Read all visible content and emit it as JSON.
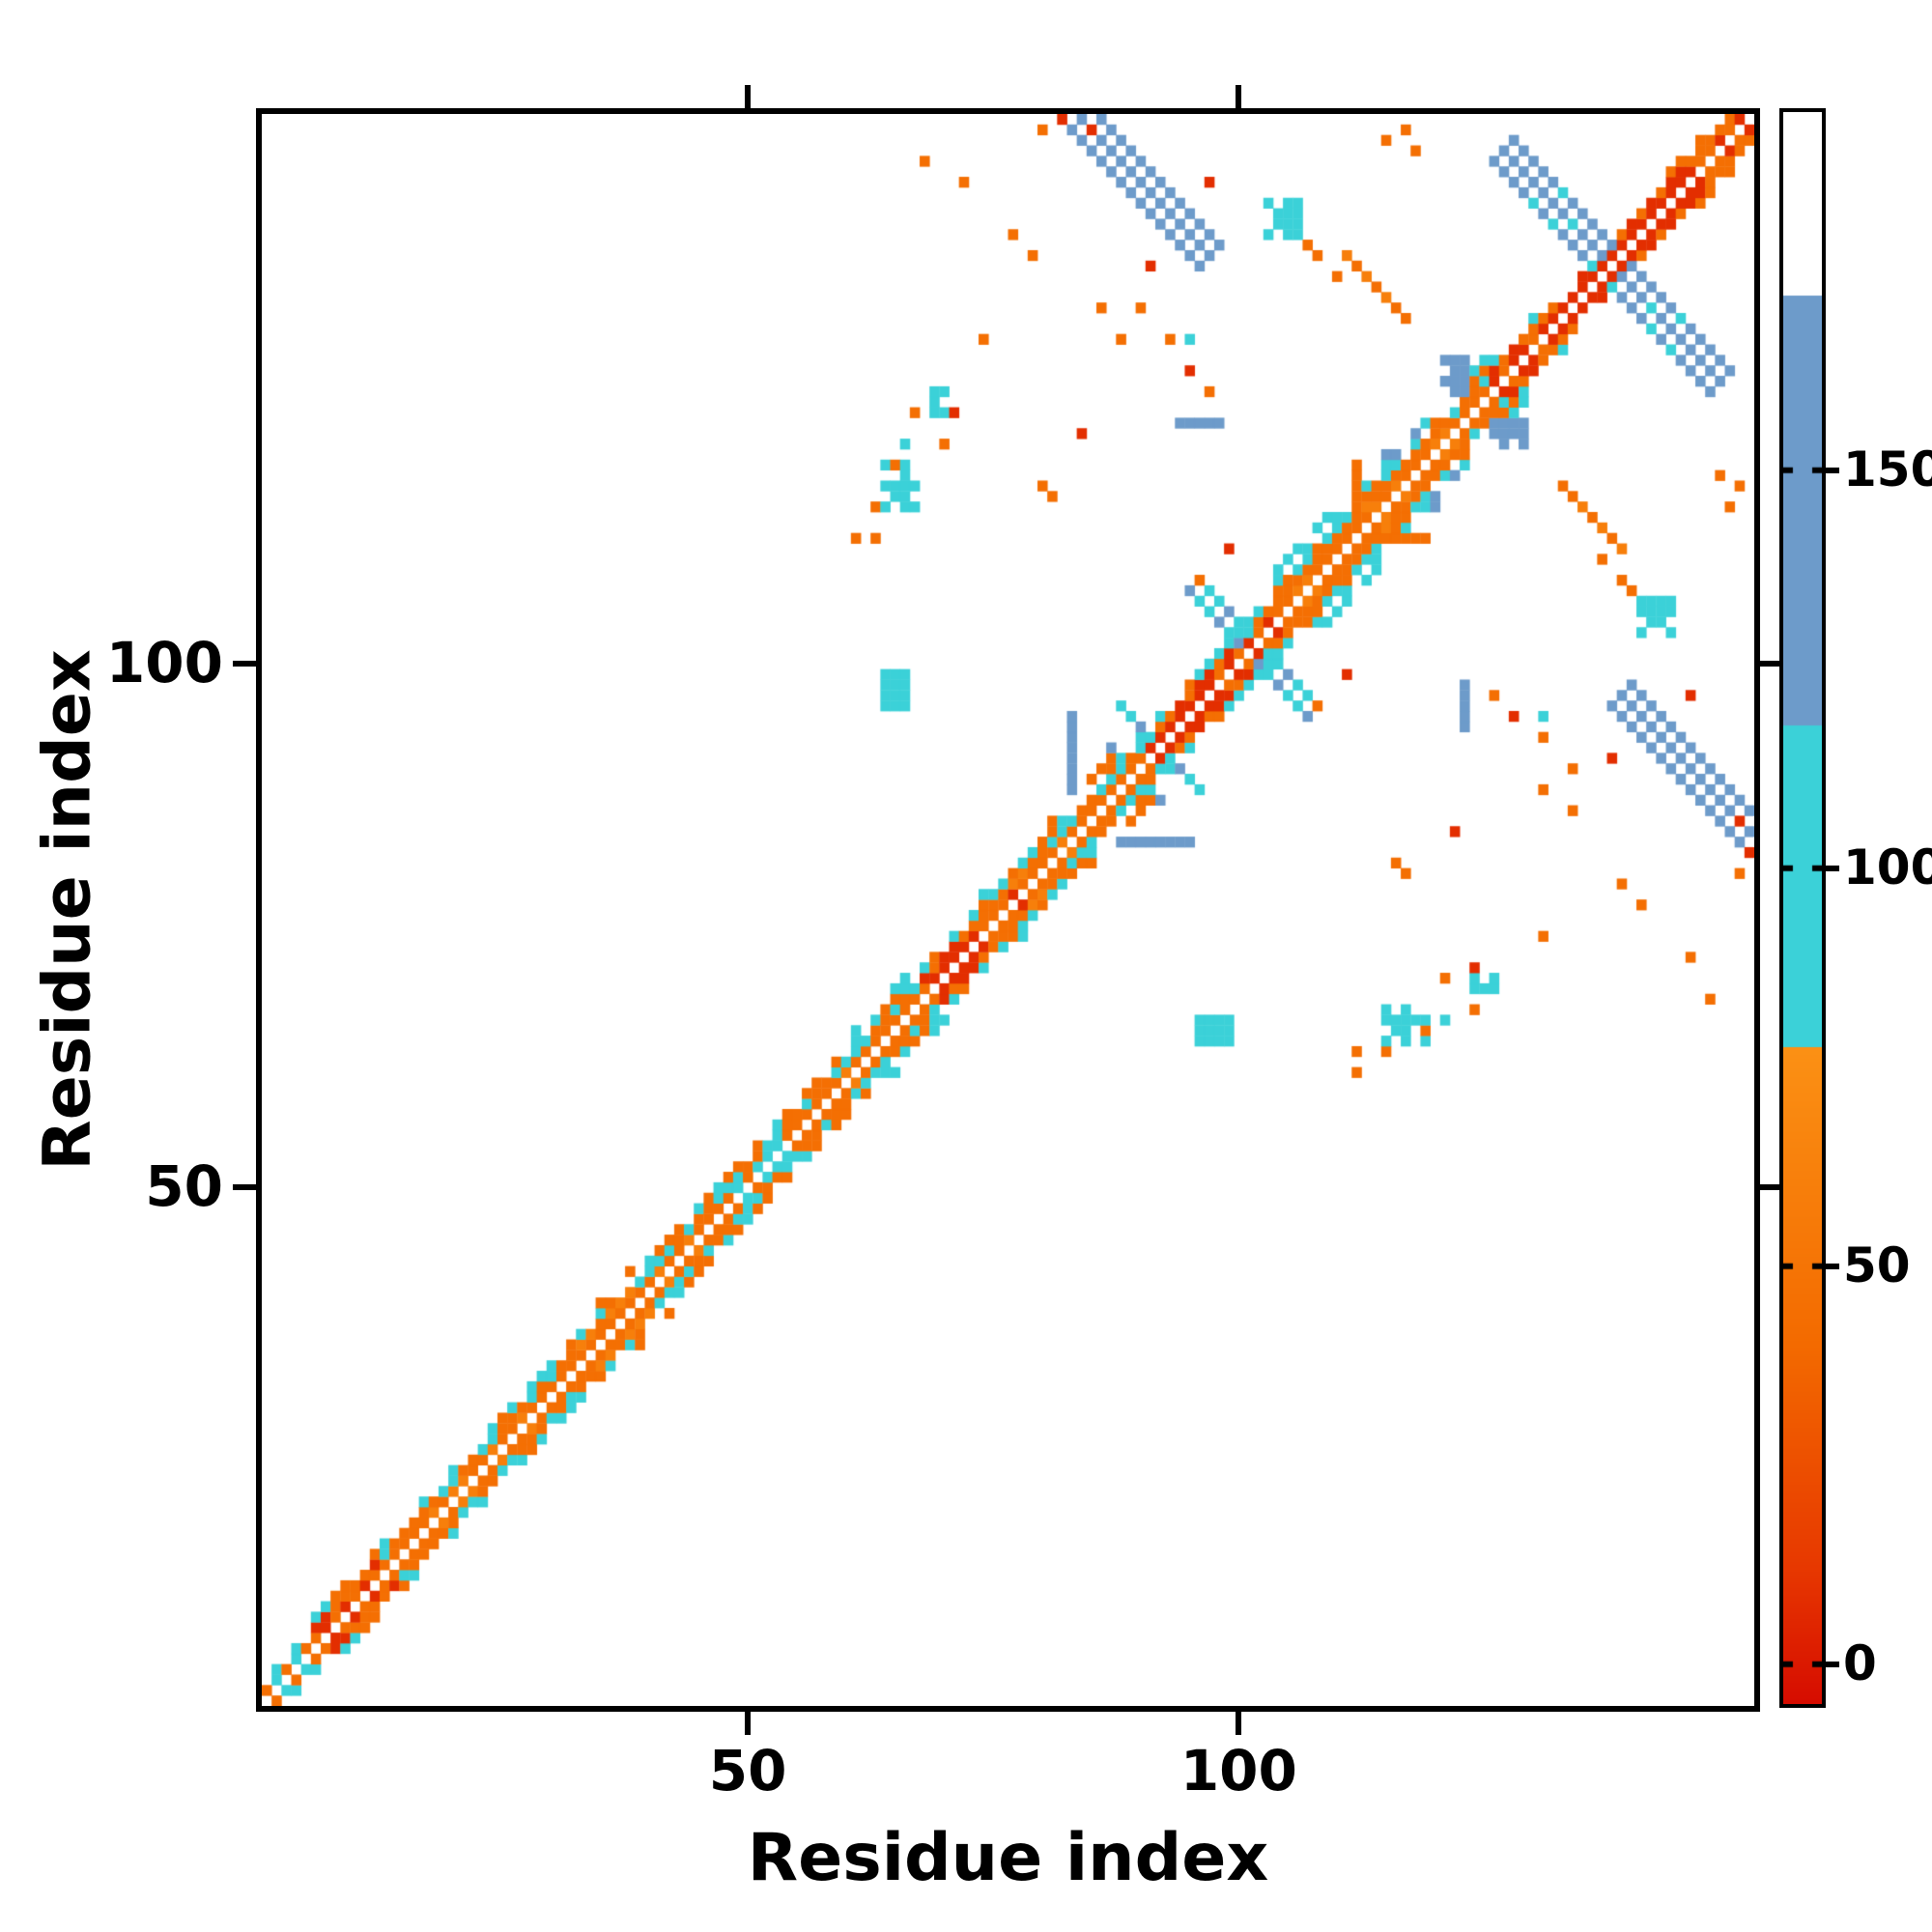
{
  "figure": {
    "background": "#ffffff"
  },
  "chart_data": {
    "type": "heatmap",
    "title": "",
    "xlabel": "Residue index",
    "ylabel": "Residue index",
    "n_residues": 152,
    "axis_range": [
      1,
      152
    ],
    "x_ticks": [
      50,
      100
    ],
    "y_ticks": [
      50,
      100
    ],
    "grid": false,
    "colorbar": {
      "ticks": [
        0,
        50,
        100,
        150
      ],
      "range": [
        -5,
        195
      ],
      "position": "right"
    },
    "colormap": {
      "anchors": [
        [
          -5,
          "#d60c00"
        ],
        [
          12,
          "#e73800"
        ],
        [
          40,
          "#f36a00"
        ],
        [
          77,
          "#fb9014"
        ]
      ],
      "flat_bands": [
        {
          "from": 77.5,
          "to": 118,
          "color": "#3bd1d8"
        },
        {
          "from": 118,
          "to": 172,
          "color": "#6d9bca"
        },
        {
          "from": 172,
          "to": 200,
          "color": "#ffffff"
        }
      ]
    },
    "value_levels": {
      "red": 8,
      "orange": 45,
      "orange_light": 60,
      "cyan": 95,
      "blue": 140
    },
    "texture_seed": 20240613,
    "features": {
      "diagonal_segments": [
        {
          "from": 1,
          "to": 5,
          "palettes": [
            [
              95,
              45,
              45
            ],
            [
              45,
              null,
              95
            ]
          ]
        },
        {
          "from": 6,
          "to": 12,
          "palettes": [
            [
              8,
              45,
              8
            ],
            [
              45,
              45,
              8
            ],
            [
              null,
              45,
              95
            ]
          ]
        },
        {
          "from": 13,
          "to": 22,
          "palettes": [
            [
              45,
              45,
              60
            ],
            [
              45,
              95,
              45
            ],
            [
              95,
              null,
              null
            ]
          ]
        },
        {
          "from": 23,
          "to": 30,
          "palettes": [
            [
              45,
              60,
              45
            ],
            [
              45,
              45,
              95
            ],
            [
              null,
              95,
              45,
              null
            ]
          ]
        },
        {
          "from": 31,
          "to": 38,
          "palettes": [
            [
              45,
              45,
              45
            ],
            [
              60,
              45,
              45
            ],
            [
              45,
              95,
              null
            ],
            [
              null,
              null,
              45
            ]
          ]
        },
        {
          "from": 39,
          "to": 46,
          "palettes": [
            [
              45,
              60,
              45
            ],
            [
              95,
              45,
              95
            ],
            [
              95,
              45,
              null
            ]
          ]
        },
        {
          "from": 47,
          "to": 53,
          "palettes": [
            [
              45,
              45,
              95
            ],
            [
              95,
              95,
              45
            ],
            [
              45,
              null,
              95
            ]
          ]
        },
        {
          "from": 54,
          "to": 60,
          "palettes": [
            [
              60,
              45,
              45
            ],
            [
              45,
              95,
              45
            ],
            [
              null,
              45,
              null
            ]
          ]
        },
        {
          "from": 61,
          "to": 67,
          "palettes": [
            [
              45,
              45,
              60
            ],
            [
              45,
              45,
              95
            ],
            [
              95,
              null,
              45
            ],
            [
              null,
              null,
              95
            ]
          ]
        },
        {
          "from": 68,
          "to": 72,
          "palettes": [
            [
              8,
              8,
              45
            ],
            [
              8,
              45,
              45
            ],
            [
              45,
              95,
              null
            ],
            [
              null,
              95,
              null
            ]
          ]
        },
        {
          "from": 73,
          "to": 80,
          "palettes": [
            [
              45,
              45,
              8
            ],
            [
              60,
              45,
              45
            ],
            [
              45,
              95,
              95
            ],
            [
              95,
              null,
              null
            ]
          ]
        },
        {
          "from": 81,
          "to": 88,
          "palettes": [
            [
              45,
              60,
              45
            ],
            [
              45,
              45,
              95
            ],
            [
              95,
              45,
              null
            ],
            [
              45,
              null,
              95
            ],
            [
              null,
              null,
              140
            ]
          ]
        },
        {
          "from": 89,
          "to": 93,
          "palettes": [
            [
              45,
              8,
              45
            ],
            [
              45,
              45,
              95
            ],
            [
              95,
              null,
              null
            ]
          ]
        },
        {
          "from": 94,
          "to": 97,
          "palettes": [
            [
              8,
              8,
              8
            ],
            [
              8,
              45,
              8
            ],
            [
              95,
              null,
              45
            ]
          ]
        },
        {
          "from": 98,
          "to": 103,
          "palettes": [
            [
              8,
              8,
              45
            ],
            [
              45,
              8,
              45
            ],
            [
              95,
              95,
              null
            ]
          ]
        },
        {
          "from": 104,
          "to": 111,
          "palettes": [
            [
              45,
              60,
              45
            ],
            [
              45,
              45,
              60
            ],
            [
              95,
              95,
              45
            ],
            [
              95,
              null,
              null
            ],
            [
              null,
              95,
              null
            ]
          ]
        },
        {
          "from": 112,
          "to": 118,
          "palettes": [
            [
              45,
              45,
              60
            ],
            [
              60,
              45,
              45
            ],
            [
              45,
              95,
              null
            ],
            [
              null,
              140,
              95
            ],
            [
              140,
              null,
              null
            ]
          ]
        },
        {
          "from": 119,
          "to": 125,
          "palettes": [
            [
              45,
              60,
              45
            ],
            [
              45,
              45,
              95
            ],
            [
              95,
              null,
              45
            ],
            [
              null,
              95,
              null
            ]
          ]
        },
        {
          "from": 126,
          "to": 131,
          "palettes": [
            [
              8,
              8,
              45
            ],
            [
              45,
              8,
              45
            ],
            [
              null,
              95,
              null
            ]
          ]
        },
        {
          "from": 132,
          "to": 142,
          "palettes": [
            [
              8,
              8,
              8
            ],
            [
              8,
              45,
              null
            ]
          ]
        },
        {
          "from": 143,
          "to": 148,
          "palettes": [
            [
              8,
              8,
              45
            ],
            [
              45,
              8,
              45
            ],
            [
              45,
              null,
              null
            ]
          ]
        },
        {
          "from": 149,
          "to": 151,
          "palettes": [
            [
              8,
              45,
              8
            ],
            [
              45,
              45,
              null
            ],
            [
              95,
              null,
              null
            ]
          ]
        }
      ],
      "anti_streaks": [
        {
          "cx": 137.5,
          "cy": 137.5,
          "half": 11,
          "width": 3,
          "values": [
            140,
            140,
            140,
            95
          ]
        },
        {
          "cx": 90,
          "cy": 146,
          "half": 7,
          "width": 3,
          "values": [
            140,
            140,
            125
          ]
        },
        {
          "cx": 100.5,
          "cy": 100.5,
          "half": 6,
          "width": 2,
          "values": [
            95,
            140,
            95
          ]
        },
        {
          "cx": 92,
          "cy": 92,
          "half": 4,
          "width": 1,
          "values": [
            140,
            95
          ]
        },
        {
          "cx": 113.5,
          "cy": 135.5,
          "half": 3,
          "width": 1,
          "values": [
            45,
            60
          ]
        }
      ],
      "blobs": [
        {
          "x0": 64,
          "x1": 66,
          "y0": 96,
          "y1": 99,
          "value": 95,
          "density": 0.9
        },
        {
          "x0": 103,
          "x1": 106,
          "y0": 141,
          "y1": 144,
          "value": 95,
          "density": 0.8
        },
        {
          "x0": 121,
          "x1": 123,
          "y0": 126,
          "y1": 129,
          "value": 140,
          "density": 0.8
        },
        {
          "x0": 115,
          "x1": 119,
          "y0": 64,
          "y1": 67,
          "value": 95,
          "density": 0.45
        },
        {
          "x0": 124,
          "x1": 127,
          "y0": 68,
          "y1": 70,
          "value": 95,
          "density": 0.4
        }
      ],
      "line_dashes": [
        {
          "x0": 83,
          "x1": 83,
          "y0": 89,
          "y1": 95,
          "value": 140
        },
        {
          "x0": 123,
          "x1": 123,
          "y0": 94,
          "y1": 98,
          "value": 140
        },
        {
          "x0": 115,
          "x1": 119,
          "y0": 112,
          "y1": 112,
          "value": 45
        }
      ],
      "dots": [
        [
          68,
          148,
          45
        ],
        [
          72,
          146,
          45
        ],
        [
          85,
          151,
          8
        ],
        [
          117,
          151,
          45
        ],
        [
          77,
          141,
          45
        ],
        [
          79,
          139,
          45
        ],
        [
          74,
          131,
          45
        ],
        [
          90,
          134,
          45
        ],
        [
          93,
          131,
          45
        ],
        [
          95,
          128,
          8
        ],
        [
          97,
          126,
          45
        ],
        [
          84,
          122,
          8
        ],
        [
          80,
          117,
          45
        ],
        [
          81,
          116,
          45
        ],
        [
          67,
          124,
          45
        ],
        [
          70,
          121,
          45
        ],
        [
          65,
          119,
          45
        ],
        [
          71,
          124,
          8
        ],
        [
          63,
          115,
          45
        ],
        [
          61,
          112,
          45
        ],
        [
          108,
          139,
          45
        ],
        [
          110,
          137,
          45
        ],
        [
          140,
          107,
          45
        ],
        [
          146,
          97,
          8
        ],
        [
          138,
          91,
          8
        ],
        [
          131,
          88,
          45
        ],
        [
          134,
          86,
          45
        ],
        [
          131,
          95,
          95
        ],
        [
          112,
          63,
          45
        ],
        [
          121,
          66,
          95
        ],
        [
          149,
          118,
          45
        ],
        [
          150,
          115,
          45
        ],
        [
          151,
          80,
          45
        ],
        [
          152,
          82,
          8
        ],
        [
          96,
          108,
          45
        ],
        [
          99,
          111,
          8
        ]
      ]
    }
  }
}
